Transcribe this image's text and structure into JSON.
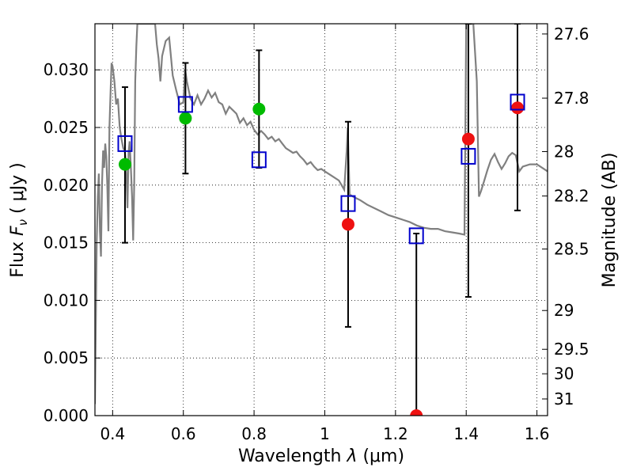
{
  "chart_data": {
    "type": "scatter",
    "xlabel_prefix": "Wavelength  ",
    "xlabel_symbol": "λ",
    "xlabel_suffix": " (μm)",
    "ylabel_prefix": "Flux  ",
    "ylabel_symbol": "F",
    "ylabel_subscript": "ν",
    "ylabel_suffix": "  ( μJy )",
    "y2label": "Magnitude (AB)",
    "xlim": [
      0.35,
      1.63
    ],
    "ylim": [
      0.0,
      0.034
    ],
    "grid": true,
    "x_ticks": [
      0.4,
      0.6,
      0.8,
      1.0,
      1.2,
      1.4,
      1.6
    ],
    "x_tick_labels": [
      "0.4",
      "0.6",
      "0.8",
      "1",
      "1.2",
      "1.4",
      "1.6"
    ],
    "y_ticks": [
      0.0,
      0.005,
      0.01,
      0.015,
      0.02,
      0.025,
      0.03
    ],
    "y_tick_labels": [
      "0.000",
      "0.005",
      "0.010",
      "0.015",
      "0.020",
      "0.025",
      "0.030"
    ],
    "y2_ticks": [
      {
        "mag": 27.6,
        "label": "27.6"
      },
      {
        "mag": 27.8,
        "label": "27.8"
      },
      {
        "mag": 28.0,
        "label": "28"
      },
      {
        "mag": 28.2,
        "label": "28.2"
      },
      {
        "mag": 28.5,
        "label": "28.5"
      },
      {
        "mag": 29.0,
        "label": "29"
      },
      {
        "mag": 29.5,
        "label": "29.5"
      },
      {
        "mag": 30.0,
        "label": "30"
      },
      {
        "mag": 31.0,
        "label": "31"
      }
    ],
    "model_sed": {
      "color": "#808080",
      "points": [
        [
          0.35,
          0.001
        ],
        [
          0.355,
          0.015
        ],
        [
          0.358,
          0.019
        ],
        [
          0.361,
          0.021
        ],
        [
          0.364,
          0.016
        ],
        [
          0.367,
          0.0138
        ],
        [
          0.37,
          0.02
        ],
        [
          0.373,
          0.023
        ],
        [
          0.376,
          0.0215
        ],
        [
          0.379,
          0.0236
        ],
        [
          0.382,
          0.0225
        ],
        [
          0.385,
          0.02
        ],
        [
          0.388,
          0.016
        ],
        [
          0.391,
          0.025
        ],
        [
          0.394,
          0.028
        ],
        [
          0.397,
          0.0306
        ],
        [
          0.4,
          0.0303
        ],
        [
          0.405,
          0.029
        ],
        [
          0.41,
          0.027
        ],
        [
          0.415,
          0.0275
        ],
        [
          0.42,
          0.025
        ],
        [
          0.425,
          0.024
        ],
        [
          0.43,
          0.0232
        ],
        [
          0.434,
          0.023
        ],
        [
          0.438,
          0.022
        ],
        [
          0.442,
          0.018
        ],
        [
          0.445,
          0.0228
        ],
        [
          0.448,
          0.0238
        ],
        [
          0.451,
          0.022
        ],
        [
          0.455,
          0.019
        ],
        [
          0.458,
          0.0152
        ],
        [
          0.461,
          0.02
        ],
        [
          0.464,
          0.029
        ],
        [
          0.467,
          0.032
        ],
        [
          0.47,
          0.034
        ],
        [
          0.48,
          0.034
        ],
        [
          0.49,
          0.034
        ],
        [
          0.5,
          0.034
        ],
        [
          0.51,
          0.034
        ],
        [
          0.52,
          0.034
        ],
        [
          0.525,
          0.0322
        ],
        [
          0.53,
          0.031
        ],
        [
          0.535,
          0.029
        ],
        [
          0.54,
          0.0312
        ],
        [
          0.55,
          0.0325
        ],
        [
          0.56,
          0.0328
        ],
        [
          0.57,
          0.0295
        ],
        [
          0.58,
          0.0282
        ],
        [
          0.59,
          0.027
        ],
        [
          0.6,
          0.0272
        ],
        [
          0.605,
          0.03
        ],
        [
          0.61,
          0.029
        ],
        [
          0.62,
          0.0275
        ],
        [
          0.63,
          0.027
        ],
        [
          0.64,
          0.0278
        ],
        [
          0.65,
          0.027
        ],
        [
          0.66,
          0.0275
        ],
        [
          0.67,
          0.0282
        ],
        [
          0.68,
          0.0276
        ],
        [
          0.69,
          0.028
        ],
        [
          0.7,
          0.0272
        ],
        [
          0.71,
          0.027
        ],
        [
          0.72,
          0.0262
        ],
        [
          0.73,
          0.0268
        ],
        [
          0.74,
          0.0265
        ],
        [
          0.75,
          0.0262
        ],
        [
          0.76,
          0.0254
        ],
        [
          0.77,
          0.0258
        ],
        [
          0.78,
          0.0252
        ],
        [
          0.79,
          0.0255
        ],
        [
          0.8,
          0.0248
        ],
        [
          0.81,
          0.0244
        ],
        [
          0.82,
          0.0247
        ],
        [
          0.83,
          0.0244
        ],
        [
          0.84,
          0.024
        ],
        [
          0.85,
          0.0242
        ],
        [
          0.86,
          0.0238
        ],
        [
          0.87,
          0.024
        ],
        [
          0.88,
          0.0236
        ],
        [
          0.89,
          0.0232
        ],
        [
          0.9,
          0.023
        ],
        [
          0.91,
          0.0228
        ],
        [
          0.92,
          0.0229
        ],
        [
          0.93,
          0.0225
        ],
        [
          0.94,
          0.0222
        ],
        [
          0.95,
          0.0218
        ],
        [
          0.96,
          0.022
        ],
        [
          0.97,
          0.0216
        ],
        [
          0.98,
          0.0213
        ],
        [
          0.99,
          0.0214
        ],
        [
          1.0,
          0.0212
        ],
        [
          1.02,
          0.0208
        ],
        [
          1.04,
          0.0204
        ],
        [
          1.055,
          0.0196
        ],
        [
          1.062,
          0.023
        ],
        [
          1.065,
          0.025
        ],
        [
          1.068,
          0.0215
        ],
        [
          1.07,
          0.0192
        ],
        [
          1.08,
          0.019
        ],
        [
          1.1,
          0.0187
        ],
        [
          1.12,
          0.0183
        ],
        [
          1.14,
          0.018
        ],
        [
          1.16,
          0.0177
        ],
        [
          1.18,
          0.0174
        ],
        [
          1.2,
          0.0172
        ],
        [
          1.22,
          0.017
        ],
        [
          1.24,
          0.0168
        ],
        [
          1.26,
          0.0165
        ],
        [
          1.28,
          0.0163
        ],
        [
          1.3,
          0.0162
        ],
        [
          1.32,
          0.0162
        ],
        [
          1.34,
          0.016
        ],
        [
          1.36,
          0.0159
        ],
        [
          1.38,
          0.0158
        ],
        [
          1.395,
          0.0157
        ],
        [
          1.398,
          0.026
        ],
        [
          1.4,
          0.034
        ],
        [
          1.41,
          0.034
        ],
        [
          1.42,
          0.034
        ],
        [
          1.43,
          0.029
        ],
        [
          1.436,
          0.019
        ],
        [
          1.442,
          0.0195
        ],
        [
          1.45,
          0.0203
        ],
        [
          1.46,
          0.0213
        ],
        [
          1.47,
          0.0222
        ],
        [
          1.48,
          0.0227
        ],
        [
          1.49,
          0.022
        ],
        [
          1.5,
          0.0214
        ],
        [
          1.51,
          0.0219
        ],
        [
          1.52,
          0.0225
        ],
        [
          1.53,
          0.0228
        ],
        [
          1.54,
          0.0226
        ],
        [
          1.55,
          0.0212
        ],
        [
          1.56,
          0.0216
        ],
        [
          1.58,
          0.0218
        ],
        [
          1.6,
          0.0218
        ],
        [
          1.62,
          0.0214
        ],
        [
          1.63,
          0.0212
        ]
      ]
    },
    "observed_color_detected": "#00bb00",
    "observed_color_other": "#ee1111",
    "model_box_color": "#0000cc",
    "errorbar_color": "#000000",
    "observations": [
      {
        "x": 0.435,
        "flux": 0.0218,
        "err_lo": 0.015,
        "err_hi": 0.0285,
        "model": 0.0236,
        "detected": true
      },
      {
        "x": 0.606,
        "flux": 0.0258,
        "err_lo": 0.021,
        "err_hi": 0.0306,
        "model": 0.027,
        "detected": true
      },
      {
        "x": 0.814,
        "flux": 0.0266,
        "err_lo": 0.0215,
        "err_hi": 0.0317,
        "model": 0.0222,
        "detected": true
      },
      {
        "x": 1.066,
        "flux": 0.0166,
        "err_lo": 0.0077,
        "err_hi": 0.0255,
        "model": 0.0184,
        "detected": false
      },
      {
        "x": 1.259,
        "flux": 0.0,
        "err_lo": 0.0,
        "err_hi": 0.0158,
        "model": 0.0156,
        "detected": false
      },
      {
        "x": 1.406,
        "flux": 0.024,
        "err_lo": 0.0103,
        "err_hi": 0.034,
        "model": 0.0225,
        "detected": false
      },
      {
        "x": 1.545,
        "flux": 0.0267,
        "err_lo": 0.0178,
        "err_hi": 0.034,
        "model": 0.0272,
        "detected": false
      }
    ]
  }
}
